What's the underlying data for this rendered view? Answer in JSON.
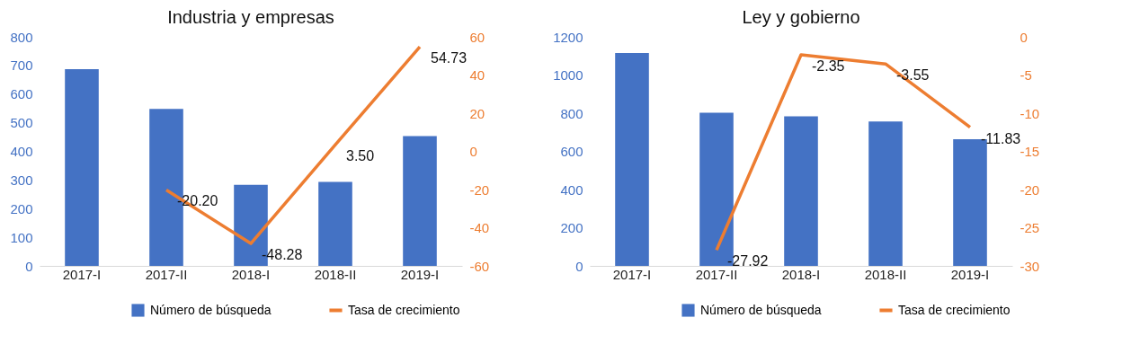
{
  "chart_data": [
    {
      "type": "bar",
      "title": "Industria y empresas",
      "categories": [
        "2017-I",
        "2017-II",
        "2018-I",
        "2018-II",
        "2019-I"
      ],
      "series": [
        {
          "name": "Número de búsqueda",
          "color": "#4472c4",
          "values": [
            687,
            548,
            283,
            293,
            453
          ]
        },
        {
          "name": "Tasa de crecimiento",
          "type": "line",
          "axis": "y2",
          "color": "#ed7d31",
          "values": [
            null,
            -20.2,
            -48.28,
            3.5,
            54.73
          ],
          "value_labels": [
            null,
            "-20.20",
            "-48.28",
            "3.50",
            "54.73"
          ]
        }
      ],
      "ylim": [
        0,
        800
      ],
      "yticks": [
        0,
        100,
        200,
        300,
        400,
        500,
        600,
        700,
        800
      ],
      "y2lim": [
        -60,
        60
      ],
      "y2ticks": [
        -60,
        -40,
        -20,
        0,
        20,
        40,
        60
      ],
      "grid": false,
      "legend": "bottom"
    },
    {
      "type": "bar",
      "title": "Ley y gobierno",
      "categories": [
        "2017-I",
        "2017-II",
        "2018-I",
        "2018-II",
        "2019-I"
      ],
      "series": [
        {
          "name": "Número de búsqueda",
          "color": "#4472c4",
          "values": [
            1115,
            802,
            783,
            756,
            663
          ]
        },
        {
          "name": "Tasa de crecimiento",
          "type": "line",
          "axis": "y2",
          "color": "#ed7d31",
          "values": [
            null,
            -27.92,
            -2.35,
            -3.55,
            -11.83
          ],
          "value_labels": [
            null,
            "-27.92",
            "-2.35",
            "-3.55",
            "-11.83"
          ]
        }
      ],
      "ylim": [
        0,
        1200
      ],
      "yticks": [
        0,
        200,
        400,
        600,
        800,
        1000,
        1200
      ],
      "y2lim": [
        -30,
        0
      ],
      "y2ticks": [
        -30,
        -25,
        -20,
        -15,
        -10,
        -5,
        0
      ],
      "grid": false,
      "legend": "bottom"
    }
  ]
}
